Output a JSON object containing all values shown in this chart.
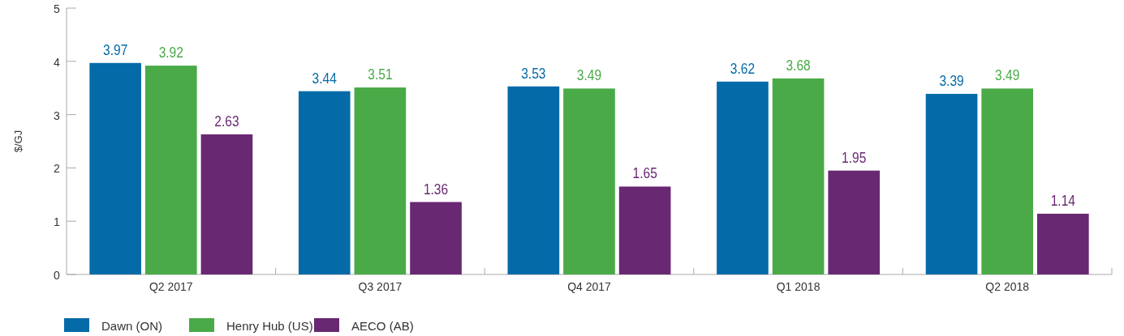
{
  "chart_data": {
    "type": "bar",
    "ylabel": "$/GJ",
    "categories": [
      "Q2 2017",
      "Q3 2017",
      "Q4 2017",
      "Q1 2018",
      "Q2 2018"
    ],
    "series": [
      {
        "name": "Dawn (ON)",
        "color": "#056aa8",
        "values": [
          3.97,
          3.44,
          3.53,
          3.62,
          3.39
        ]
      },
      {
        "name": "Henry Hub (US)",
        "color": "#4aaa47",
        "values": [
          3.92,
          3.51,
          3.49,
          3.68,
          3.49
        ]
      },
      {
        "name": "AECO (AB)",
        "color": "#692872",
        "values": [
          2.63,
          1.36,
          1.65,
          1.95,
          1.14
        ]
      }
    ],
    "ylim": [
      0,
      5
    ],
    "yticks": [
      0,
      1,
      2,
      3,
      4,
      5
    ],
    "grid": false,
    "legend": "bottom left",
    "data_labels": true
  }
}
